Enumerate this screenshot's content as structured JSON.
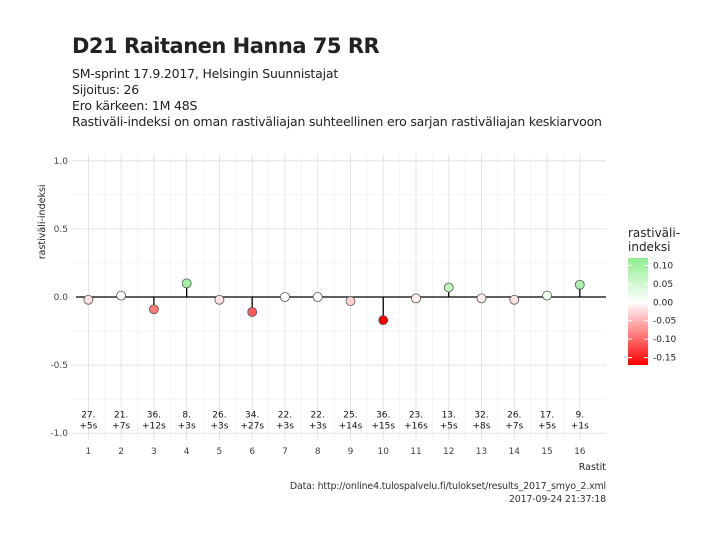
{
  "header": {
    "title": "D21 Raitanen Hanna 75 RR",
    "subtitle_lines": [
      "SM-sprint 17.9.2017, Helsingin Suunnistajat",
      "Sijoitus: 26",
      "Ero kärkeen: 1M 48S",
      "Rastiväli-indeksi on oman rastiväliajan suhteellinen ero sarjan rastiväliajan keskiarvoon"
    ]
  },
  "caption": {
    "source": "Data: http://online4.tulospalvelu.fi/tulokset/results_2017_smyo_2.xml",
    "timestamp": "2017-09-24 21:37:18"
  },
  "legend": {
    "title_line1": "rastiväli-",
    "title_line2": "indeksi",
    "ticks": [
      "0.10",
      "0.05",
      "0.00",
      "-0.05",
      "-0.10",
      "-0.15"
    ],
    "tick_values": [
      0.1,
      0.05,
      0.0,
      -0.05,
      -0.1,
      -0.15
    ],
    "range": [
      -0.17,
      0.12
    ]
  },
  "colors": {
    "positive": "#90EE90",
    "zero": "#FFFFFF",
    "negative": "#FF0000"
  },
  "chart_data": {
    "type": "scatter",
    "xlabel": "Rastit",
    "ylabel": "rastiväli-indeksi",
    "ylim": [
      -1.05,
      1.05
    ],
    "xlim": [
      0.5,
      16.8
    ],
    "yticks": [
      1.0,
      0.5,
      0.0,
      -0.5,
      -1.0
    ],
    "ytick_labels": [
      "1.0",
      "0.5",
      "0.0",
      "-0.5",
      "-1.0"
    ],
    "x": [
      1,
      2,
      3,
      4,
      5,
      6,
      7,
      8,
      9,
      10,
      11,
      12,
      13,
      14,
      15,
      16
    ],
    "y": [
      -0.02,
      0.01,
      -0.09,
      0.1,
      -0.02,
      -0.11,
      0.0,
      0.0,
      -0.03,
      -0.17,
      -0.01,
      0.07,
      -0.01,
      -0.02,
      0.01,
      0.09
    ],
    "annotations": [
      {
        "rank": "27.",
        "diff": "+5s"
      },
      {
        "rank": "21.",
        "diff": "+7s"
      },
      {
        "rank": "36.",
        "diff": "+12s"
      },
      {
        "rank": "8.",
        "diff": "+3s"
      },
      {
        "rank": "26.",
        "diff": "+3s"
      },
      {
        "rank": "34.",
        "diff": "+27s"
      },
      {
        "rank": "22.",
        "diff": "+3s"
      },
      {
        "rank": "22.",
        "diff": "+3s"
      },
      {
        "rank": "25.",
        "diff": "+14s"
      },
      {
        "rank": "36.",
        "diff": "+15s"
      },
      {
        "rank": "23.",
        "diff": "+16s"
      },
      {
        "rank": "13.",
        "diff": "+5s"
      },
      {
        "rank": "32.",
        "diff": "+8s"
      },
      {
        "rank": "26.",
        "diff": "+7s"
      },
      {
        "rank": "17.",
        "diff": "+5s"
      },
      {
        "rank": "9.",
        "diff": "+1s"
      }
    ],
    "annotation_y": -0.92,
    "grid": true
  }
}
